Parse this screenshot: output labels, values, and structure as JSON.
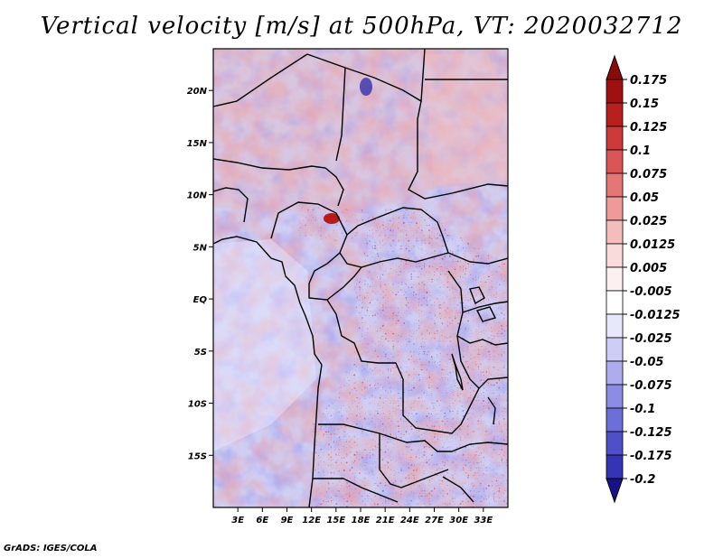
{
  "title": "Vertical velocity [m/s] at 500hPa, VT: 2020032712",
  "credit": "GrADS: IGES/COLA",
  "map": {
    "variable": "Vertical velocity",
    "units": "m/s",
    "level": "500hPa",
    "valid_time": "2020032712",
    "lon_range": [
      0,
      36
    ],
    "lat_range": [
      -20,
      24
    ],
    "lon_ticks": [
      {
        "value": 3,
        "label": "3E"
      },
      {
        "value": 6,
        "label": "6E"
      },
      {
        "value": 9,
        "label": "9E"
      },
      {
        "value": 12,
        "label": "12E"
      },
      {
        "value": 15,
        "label": "15E"
      },
      {
        "value": 18,
        "label": "18E"
      },
      {
        "value": 21,
        "label": "21E"
      },
      {
        "value": 24,
        "label": "24E"
      },
      {
        "value": 27,
        "label": "27E"
      },
      {
        "value": 30,
        "label": "30E"
      },
      {
        "value": 33,
        "label": "33E"
      }
    ],
    "lat_ticks": [
      {
        "value": 20,
        "label": "20N"
      },
      {
        "value": 15,
        "label": "15N"
      },
      {
        "value": 10,
        "label": "10N"
      },
      {
        "value": 5,
        "label": "5N"
      },
      {
        "value": 0,
        "label": "EQ"
      },
      {
        "value": -5,
        "label": "5S"
      },
      {
        "value": -10,
        "label": "10S"
      },
      {
        "value": -15,
        "label": "15S"
      }
    ]
  },
  "colorbar": {
    "levels": [
      {
        "label": "0.175",
        "color": "#a01010"
      },
      {
        "label": "0.15",
        "color": "#b82020"
      },
      {
        "label": "0.125",
        "color": "#cc3a3a"
      },
      {
        "label": "0.1",
        "color": "#da5656"
      },
      {
        "label": "0.075",
        "color": "#e47676"
      },
      {
        "label": "0.05",
        "color": "#ee9a9a"
      },
      {
        "label": "0.025",
        "color": "#f5bcbc"
      },
      {
        "label": "0.0125",
        "color": "#fadada"
      },
      {
        "label": "0.005",
        "color": "#fdf0f0"
      },
      {
        "label": "-0.005",
        "color": "#ffffff"
      },
      {
        "label": "-0.0125",
        "color": "#e8e8fb"
      },
      {
        "label": "-0.025",
        "color": "#cdcdf5"
      },
      {
        "label": "-0.05",
        "color": "#adadee"
      },
      {
        "label": "-0.075",
        "color": "#8c8ce4"
      },
      {
        "label": "-0.1",
        "color": "#6e6ed8"
      },
      {
        "label": "-0.125",
        "color": "#4f4fc8"
      },
      {
        "label": "-0.175",
        "color": "#3434b4"
      },
      {
        "label": "-0.2",
        "color": "#20209a"
      }
    ],
    "top_color": "#8a0a0a",
    "bottom_color": "#18128a"
  }
}
